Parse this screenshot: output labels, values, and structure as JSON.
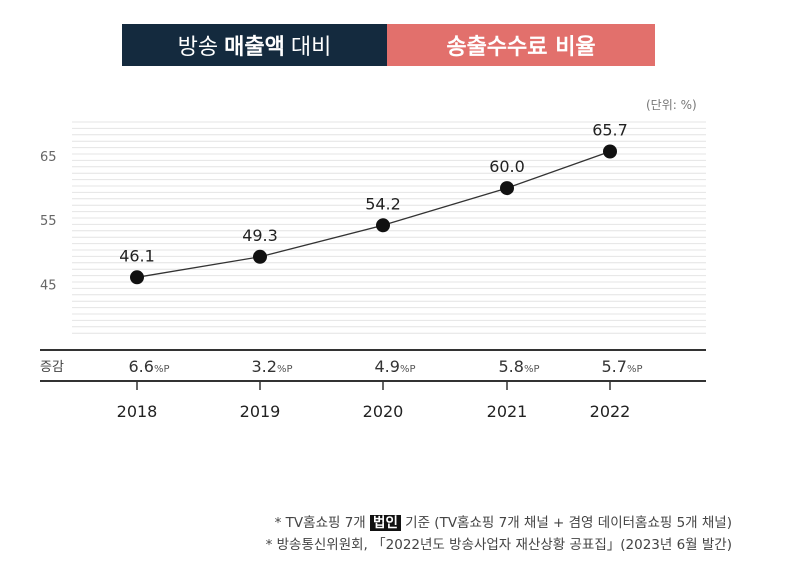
{
  "header": {
    "left_pre": "방송",
    "left_bold": "매출액",
    "left_post": "대비",
    "right": "송출수수료 비율"
  },
  "unit_label": "(단위: %)",
  "change_row_label": "증감",
  "change_values": [
    "6.6",
    "3.2",
    "4.9",
    "5.8",
    "5.7"
  ],
  "change_unit": "%P",
  "chart_data": {
    "type": "line",
    "x": [
      "2018",
      "2019",
      "2020",
      "2021",
      "2022"
    ],
    "series": [
      {
        "values": [
          46.1,
          49.3,
          54.2,
          60.0,
          65.7
        ]
      }
    ],
    "data_labels": [
      "46.1",
      "49.3",
      "54.2",
      "60.0",
      "65.7"
    ],
    "y_ticks": [
      45,
      55,
      65
    ],
    "y_tick_labels": [
      "45",
      "55",
      "65"
    ],
    "ylim": [
      40,
      70
    ],
    "grid": true,
    "colors": {
      "line": "#333333",
      "marker": "#111111"
    }
  },
  "footnotes": {
    "line1_pre": "* TV홈쇼핑 7개",
    "line1_highlight": "법인",
    "line1_post": "기준 (TV홈쇼핑 7개 채널 + 겸영 데이터홈쇼핑 5개 채널)",
    "line2": "* 방송통신위원회, 「2022년도 방송사업자 재산상황 공표집」(2023년 6월 발간)"
  }
}
